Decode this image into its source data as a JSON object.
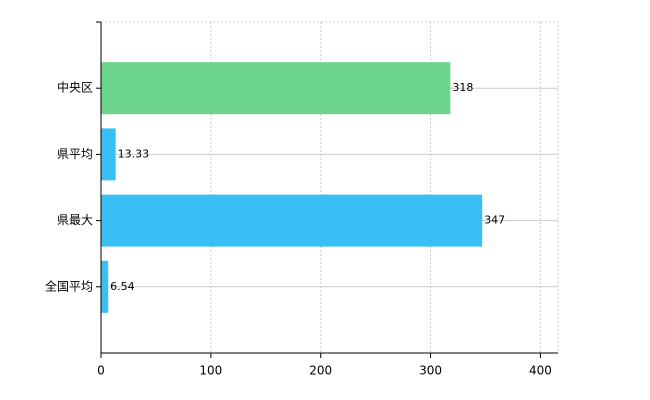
{
  "chart_data": {
    "type": "barh",
    "categories": [
      "中央区",
      "県平均",
      "県最大",
      "全国平均"
    ],
    "values": [
      318,
      13.33,
      347,
      6.54
    ],
    "colors": [
      "#6dd58c",
      "#38c0f5",
      "#38c0f5",
      "#38c0f5"
    ],
    "xlim": [
      0,
      416
    ],
    "xticks": [
      0,
      100,
      200,
      300,
      400
    ],
    "grid": true
  }
}
